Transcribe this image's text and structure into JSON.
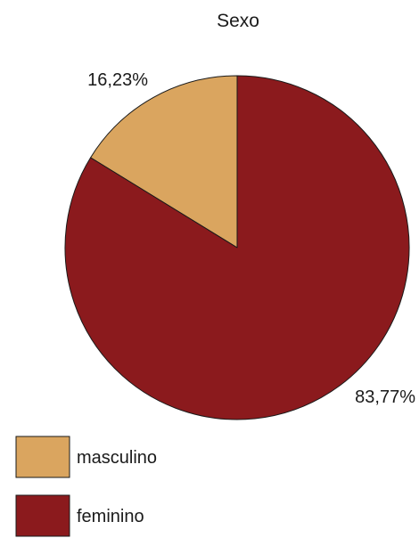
{
  "chart_data": {
    "type": "pie",
    "title": "Sexo",
    "start_angle_deg": 0,
    "direction": "counterclockwise",
    "legend_position": "bottom-left",
    "slices": [
      {
        "label": "masculino",
        "value": 16.23,
        "value_label": "16,23%",
        "color": "#daa55f"
      },
      {
        "label": "feminino",
        "value": 83.77,
        "value_label": "83,77%",
        "color": "#8b1a1d"
      }
    ],
    "edge_color": "#1a1a1a"
  }
}
